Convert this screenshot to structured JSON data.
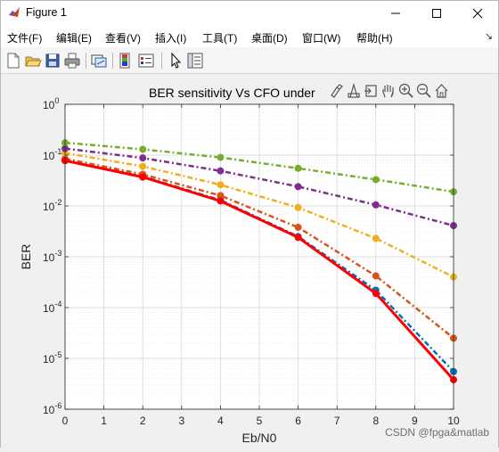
{
  "window": {
    "title": "Figure 1",
    "controls": {
      "minimize": "—",
      "maximize": "☐",
      "close": "✕"
    }
  },
  "menu": {
    "items": [
      "文件(F)",
      "编辑(E)",
      "查看(V)",
      "插入(I)",
      "工具(T)",
      "桌面(D)",
      "窗口(W)",
      "帮助(H)"
    ],
    "overflow": "↘"
  },
  "toolbar": {
    "icons": [
      "new-figure-icon",
      "open-file-icon",
      "save-icon",
      "print-icon",
      "link-plot-icon",
      "colorbar-icon",
      "legend-icon",
      "pointer-icon",
      "property-inspector-icon"
    ]
  },
  "axes_toolbar": {
    "icons": [
      "brush-icon",
      "data-tips-icon",
      "export-icon",
      "pan-icon",
      "zoom-in-icon",
      "zoom-out-icon",
      "home-icon"
    ]
  },
  "watermark": "CSDN @fpga&matlab",
  "chart_data": {
    "type": "line",
    "title": "BER sensitivity Vs CFO under",
    "xlabel": "Eb/N0",
    "ylabel": "BER",
    "xlim": [
      0,
      10
    ],
    "ylim": [
      1e-06,
      1
    ],
    "yscale": "log",
    "grid": true,
    "minor_grid": true,
    "x": [
      0,
      2,
      4,
      6,
      8,
      10
    ],
    "xticks": [
      "0",
      "1",
      "2",
      "3",
      "4",
      "5",
      "6",
      "7",
      "8",
      "9",
      "10"
    ],
    "yticks": [
      {
        "base": "10",
        "exp": "0"
      },
      {
        "base": "10",
        "exp": "-1"
      },
      {
        "base": "10",
        "exp": "-2"
      },
      {
        "base": "10",
        "exp": "-3"
      },
      {
        "base": "10",
        "exp": "-4"
      },
      {
        "base": "10",
        "exp": "-5"
      },
      {
        "base": "10",
        "exp": "-6"
      }
    ],
    "series": [
      {
        "color": "#0072bd",
        "dash": "6,3,2,3",
        "width": 2.5,
        "values": [
          0.078,
          0.038,
          0.013,
          0.0025,
          0.00022,
          5.5e-06
        ]
      },
      {
        "color": "#d95319",
        "dash": "6,3,2,3",
        "width": 2.5,
        "values": [
          0.085,
          0.042,
          0.016,
          0.0038,
          0.00042,
          2.5e-05
        ]
      },
      {
        "color": "#edb120",
        "dash": "6,3,2,3",
        "width": 2.5,
        "values": [
          0.11,
          0.06,
          0.026,
          0.0093,
          0.0023,
          0.0004
        ]
      },
      {
        "color": "#7e2f8e",
        "dash": "6,3,2,3",
        "width": 2.5,
        "values": [
          0.135,
          0.088,
          0.049,
          0.024,
          0.0105,
          0.0041
        ]
      },
      {
        "color": "#77ac30",
        "dash": "6,3,2,3",
        "width": 2.5,
        "values": [
          0.175,
          0.13,
          0.09,
          0.055,
          0.033,
          0.019
        ]
      },
      {
        "color": "#ff0000",
        "dash": "",
        "width": 3,
        "values": [
          0.078,
          0.037,
          0.0125,
          0.0024,
          0.00019,
          3.8e-06
        ]
      }
    ]
  }
}
